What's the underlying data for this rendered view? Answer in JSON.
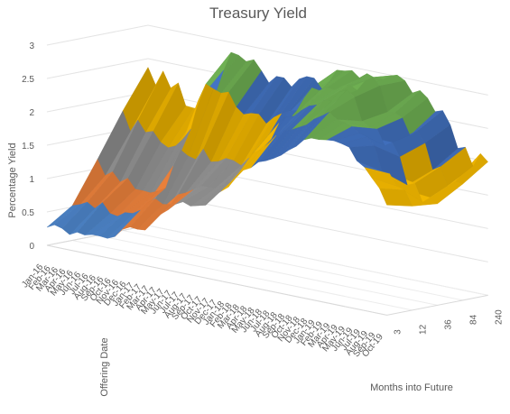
{
  "chart_data": {
    "type": "surface3d",
    "title": "Treasury Yield",
    "zlabel": "Percentage Yield",
    "xlabel": "Offering Date",
    "ylabel": "Months into Future",
    "zlim": [
      0,
      3
    ],
    "z_ticks": [
      "0",
      "0.5",
      "1",
      "1.5",
      "2",
      "2.5",
      "3"
    ],
    "grid": true,
    "legend": "none",
    "x_ticks": [
      "Jan-16",
      "Feb-16",
      "Mar-16",
      "Apr-16",
      "May-16",
      "Jun-16",
      "Jul-16",
      "Aug-16",
      "Sep-16",
      "Oct-16",
      "Nov-16",
      "Dec-16",
      "Jan-17",
      "Feb-17",
      "Mar-17",
      "Apr-17",
      "May-17",
      "Jun-17",
      "Jul-17",
      "Aug-17",
      "Sep-17",
      "Oct-17",
      "Nov-17",
      "Dec-17",
      "Jan-18",
      "Feb-18",
      "Mar-18",
      "Apr-18",
      "May-18",
      "Jun-18",
      "Jul-18",
      "Aug-18",
      "Sep-18",
      "Oct-18",
      "Nov-18",
      "Dec-18",
      "Jan-19",
      "Feb-19",
      "Mar-19",
      "Apr-19",
      "May-19",
      "Jun-19",
      "Jul-19",
      "Aug-19",
      "Sep-19",
      "Oct-19"
    ],
    "y_ticks": [
      "3",
      "12",
      "36",
      "84",
      "240"
    ],
    "band_colors": [
      "#4a7fc1",
      "#e07b39",
      "#8f8f8f",
      "#e8b000",
      "#3e6bb5",
      "#6aa84f"
    ],
    "series": [
      {
        "name": "3",
        "values": [
          0.27,
          0.33,
          0.3,
          0.23,
          0.29,
          0.27,
          0.3,
          0.3,
          0.29,
          0.34,
          0.47,
          0.53,
          0.52,
          0.53,
          0.75,
          0.81,
          0.9,
          1.01,
          1.07,
          1.03,
          1.06,
          1.09,
          1.25,
          1.34,
          1.43,
          1.59,
          1.73,
          1.79,
          1.9,
          1.94,
          2.0,
          2.07,
          2.17,
          2.25,
          2.37,
          2.42,
          2.42,
          2.44,
          2.45,
          2.43,
          2.4,
          2.22,
          2.15,
          2.01,
          1.88,
          1.65
        ]
      },
      {
        "name": "12",
        "values": [
          0.52,
          0.56,
          0.62,
          0.55,
          0.66,
          0.52,
          0.5,
          0.58,
          0.59,
          0.66,
          0.8,
          0.88,
          0.82,
          0.84,
          1.01,
          1.06,
          1.13,
          1.21,
          1.22,
          1.23,
          1.29,
          1.37,
          1.52,
          1.7,
          1.87,
          1.94,
          2.06,
          2.2,
          2.29,
          2.33,
          2.39,
          2.45,
          2.56,
          2.63,
          2.71,
          2.63,
          2.6,
          2.57,
          2.49,
          2.46,
          2.35,
          1.99,
          1.98,
          1.81,
          1.78,
          1.56
        ]
      },
      {
        "name": "36",
        "values": [
          1.14,
          0.92,
          1.0,
          0.87,
          0.95,
          0.81,
          0.81,
          0.8,
          0.85,
          0.92,
          1.27,
          1.54,
          1.47,
          1.44,
          1.62,
          1.45,
          1.48,
          1.55,
          1.54,
          1.49,
          1.62,
          1.68,
          1.83,
          1.98,
          2.24,
          2.36,
          2.39,
          2.5,
          2.59,
          2.63,
          2.72,
          2.74,
          2.89,
          2.95,
          2.86,
          2.53,
          2.46,
          2.46,
          2.23,
          2.3,
          2.11,
          1.71,
          1.76,
          1.5,
          1.59,
          1.52
        ]
      },
      {
        "name": "84",
        "values": [
          1.79,
          1.51,
          1.7,
          1.54,
          1.58,
          1.44,
          1.38,
          1.43,
          1.56,
          1.73,
          2.18,
          2.45,
          2.4,
          2.36,
          2.4,
          2.2,
          2.11,
          2.15,
          2.16,
          2.04,
          2.16,
          2.24,
          2.3,
          2.33,
          2.55,
          2.72,
          2.7,
          2.77,
          2.76,
          2.81,
          2.88,
          2.82,
          2.98,
          3.06,
          2.96,
          2.59,
          2.6,
          2.55,
          2.31,
          2.4,
          2.24,
          1.86,
          1.93,
          1.67,
          1.76,
          1.74
        ]
      },
      {
        "name": "240",
        "values": [
          2.37,
          2.13,
          2.36,
          2.13,
          2.23,
          1.91,
          1.9,
          1.9,
          2.04,
          2.21,
          2.56,
          2.85,
          2.83,
          2.76,
          2.81,
          2.67,
          2.51,
          2.63,
          2.63,
          2.52,
          2.66,
          2.72,
          2.72,
          2.58,
          2.72,
          2.91,
          2.92,
          2.95,
          2.86,
          2.95,
          2.91,
          2.91,
          2.98,
          3.02,
          2.96,
          2.8,
          2.86,
          2.77,
          2.59,
          2.63,
          2.44,
          2.11,
          2.15,
          1.89,
          2.1,
          2.0
        ]
      }
    ]
  }
}
